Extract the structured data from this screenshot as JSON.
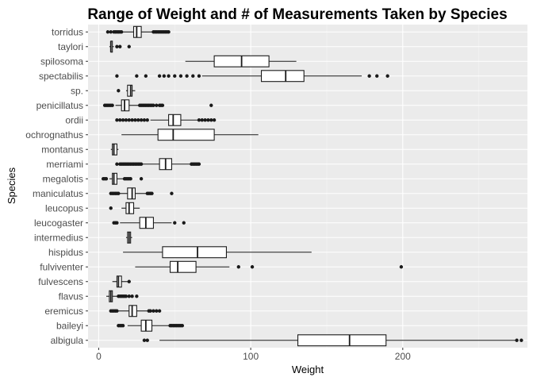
{
  "chart_data": {
    "type": "box",
    "title": "Range of Weight and # of Measurements Taken by Species",
    "xlabel": "Weight",
    "ylabel": "Species",
    "xlim": [
      -7,
      282
    ],
    "x_ticks": [
      0,
      100,
      200
    ],
    "grid": true,
    "colors": {
      "panel": "#ebebeb",
      "grid_major": "#ffffff",
      "grid_minor": "#f5f5f5",
      "box_fill": "#ffffff",
      "ink": "#1a1a1a"
    },
    "categories": [
      "albigula",
      "baileyi",
      "eremicus",
      "flavus",
      "fulvescens",
      "fulviventer",
      "hispidus",
      "intermedius",
      "leucogaster",
      "leucopus",
      "maniculatus",
      "megalotis",
      "merriami",
      "montanus",
      "ochrognathus",
      "ordii",
      "penicillatus",
      "sp.",
      "spectabilis",
      "spilosoma",
      "taylori",
      "torridus"
    ],
    "series": [
      {
        "species": "albigula",
        "q1": 131,
        "median": 165,
        "q3": 189,
        "whisker_low": 40,
        "whisker_high": 274,
        "outliers": [
          30,
          32,
          275,
          278
        ]
      },
      {
        "species": "baileyi",
        "q1": 28,
        "median": 31,
        "q3": 35,
        "whisker_low": 19,
        "whisker_high": 46,
        "outliers": [
          13,
          14,
          15,
          16,
          47,
          48,
          49,
          50,
          51,
          52,
          53,
          54,
          55
        ]
      },
      {
        "species": "eremicus",
        "q1": 20,
        "median": 22,
        "q3": 25,
        "whisker_low": 13,
        "whisker_high": 32,
        "outliers": [
          8,
          9,
          10,
          11,
          12,
          33,
          34,
          36,
          38,
          40
        ]
      },
      {
        "species": "flavus",
        "q1": 7,
        "median": 8,
        "q3": 9,
        "whisker_low": 5,
        "whisker_high": 12,
        "outliers": [
          13,
          14,
          15,
          16,
          17,
          18,
          20,
          22,
          25
        ]
      },
      {
        "species": "fulvescens",
        "q1": 12,
        "median": 13,
        "q3": 15,
        "whisker_low": 9,
        "whisker_high": 19,
        "outliers": [
          20
        ]
      },
      {
        "species": "fulviventer",
        "q1": 47,
        "median": 52,
        "q3": 64,
        "whisker_low": 24,
        "whisker_high": 86,
        "outliers": [
          92,
          101,
          199
        ]
      },
      {
        "species": "hispidus",
        "q1": 42,
        "median": 65,
        "q3": 84,
        "whisker_low": 16,
        "whisker_high": 140,
        "outliers": []
      },
      {
        "species": "intermedius",
        "q1": 19,
        "median": 20,
        "q3": 21,
        "whisker_low": 18,
        "whisker_high": 22,
        "outliers": []
      },
      {
        "species": "leucogaster",
        "q1": 27,
        "median": 31,
        "q3": 36,
        "whisker_low": 14,
        "whisker_high": 48,
        "outliers": [
          10,
          11,
          12,
          50,
          56
        ]
      },
      {
        "species": "leucopus",
        "q1": 18,
        "median": 20,
        "q3": 23,
        "whisker_low": 15,
        "whisker_high": 27,
        "outliers": [
          8
        ]
      },
      {
        "species": "maniculatus",
        "q1": 19,
        "median": 22,
        "q3": 24,
        "whisker_low": 14,
        "whisker_high": 31,
        "outliers": [
          8,
          9,
          10,
          11,
          12,
          13,
          32,
          33,
          34,
          35,
          48
        ]
      },
      {
        "species": "megalotis",
        "q1": 9,
        "median": 10,
        "q3": 12,
        "whisker_low": 7,
        "whisker_high": 16,
        "outliers": [
          3,
          4,
          5,
          17,
          18,
          19,
          20,
          21,
          28
        ]
      },
      {
        "species": "merriami",
        "q1": 40,
        "median": 44,
        "q3": 48,
        "whisker_low": 29,
        "whisker_high": 60,
        "outliers": [
          12,
          14,
          15,
          16,
          17,
          18,
          19,
          20,
          21,
          22,
          23,
          24,
          25,
          26,
          27,
          28,
          61,
          62,
          63,
          64,
          65,
          66
        ]
      },
      {
        "species": "montanus",
        "q1": 9,
        "median": 10,
        "q3": 12,
        "whisker_low": 8,
        "whisker_high": 13,
        "outliers": []
      },
      {
        "species": "ochrognathus",
        "q1": 39,
        "median": 49,
        "q3": 76,
        "whisker_low": 15,
        "whisker_high": 105,
        "outliers": []
      },
      {
        "species": "ordii",
        "q1": 46,
        "median": 49,
        "q3": 54,
        "whisker_low": 34,
        "whisker_high": 65,
        "outliers": [
          12,
          14,
          16,
          18,
          20,
          22,
          24,
          26,
          28,
          30,
          32,
          66,
          68,
          70,
          72,
          74,
          76
        ]
      },
      {
        "species": "penicillatus",
        "q1": 15,
        "median": 17,
        "q3": 20,
        "whisker_low": 11,
        "whisker_high": 26,
        "outliers": [
          4,
          5,
          6,
          7,
          8,
          9,
          27,
          28,
          29,
          30,
          31,
          32,
          33,
          34,
          35,
          36,
          38,
          40,
          41,
          42,
          74
        ]
      },
      {
        "species": "sp.",
        "q1": 19,
        "median": 21,
        "q3": 22,
        "whisker_low": 18,
        "whisker_high": 24,
        "outliers": [
          13
        ]
      },
      {
        "species": "spectabilis",
        "q1": 107,
        "median": 123,
        "q3": 135,
        "whisker_low": 68,
        "whisker_high": 173,
        "outliers": [
          12,
          25,
          31,
          40,
          43,
          46,
          50,
          54,
          58,
          62,
          66,
          178,
          183,
          190
        ]
      },
      {
        "species": "spilosoma",
        "q1": 76,
        "median": 94,
        "q3": 112,
        "whisker_low": 57,
        "whisker_high": 130,
        "outliers": []
      },
      {
        "species": "taylori",
        "q1": 8,
        "median": 8,
        "q3": 9,
        "whisker_low": 7,
        "whisker_high": 10,
        "outliers": [
          12,
          14,
          20
        ]
      },
      {
        "species": "torridus",
        "q1": 23,
        "median": 25,
        "q3": 28,
        "whisker_low": 16,
        "whisker_high": 35,
        "outliers": [
          6,
          8,
          10,
          11,
          12,
          13,
          14,
          15,
          36,
          37,
          38,
          39,
          40,
          41,
          42,
          43,
          44,
          45,
          46
        ]
      }
    ]
  }
}
